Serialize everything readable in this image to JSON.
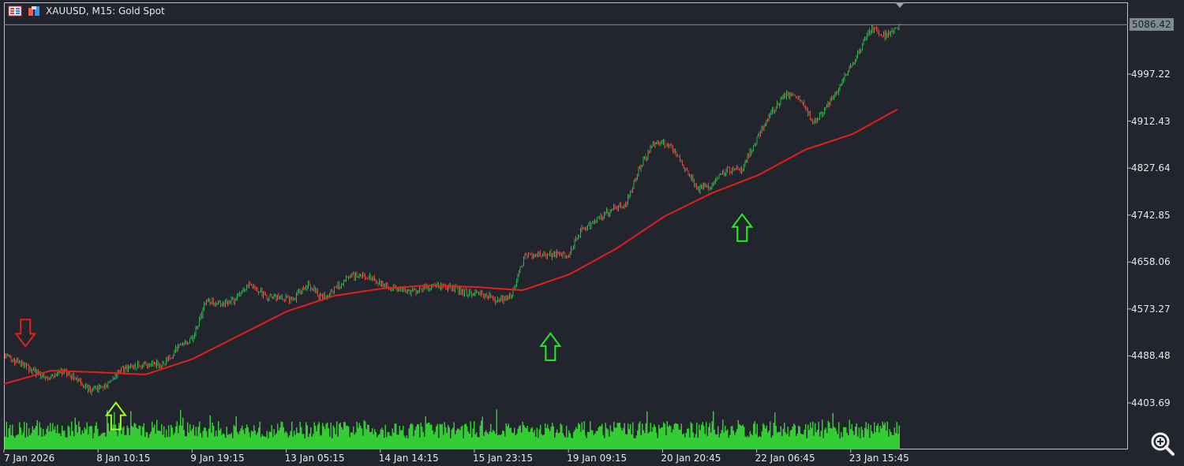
{
  "header": {
    "title": "XAUUSD, M15:  Gold Spot",
    "icons": [
      "order-book-icon",
      "chart-type-icon"
    ]
  },
  "price_axis": {
    "ticks": [
      "4997.22",
      "4912.43",
      "4827.64",
      "4742.85",
      "4658.06",
      "4573.27",
      "4488.48",
      "4403.69"
    ],
    "current_price": "5086.42"
  },
  "time_axis": {
    "ticks": [
      "7 Jan 2026",
      "8 Jan 10:15",
      "9 Jan 19:15",
      "13 Jan 05:15",
      "14 Jan 14:15",
      "15 Jan 23:15",
      "19 Jan 09:15",
      "20 Jan 20:45",
      "22 Jan 06:45",
      "23 Jan 15:45"
    ]
  },
  "colors": {
    "background": "#22252d",
    "bull": "#2fb34a",
    "bear": "#e0443a",
    "ma": "#e3201b",
    "volume": "#33cc33",
    "grid_frame": "#bfc3c8",
    "current_price_label": "#7d8a97"
  },
  "chart_data": {
    "type": "candlestick",
    "symbol": "XAUUSD",
    "timeframe": "M15",
    "ylim": [
      4370,
      5100
    ],
    "price_path": [
      4490,
      4476,
      4462,
      4448,
      4462,
      4448,
      4426,
      4433,
      4462,
      4469,
      4473,
      4473,
      4505,
      4519,
      4590,
      4583,
      4590,
      4619,
      4597,
      4593,
      4590,
      4619,
      4593,
      4611,
      4633,
      4633,
      4619,
      4611,
      4604,
      4611,
      4616,
      4611,
      4602,
      4602,
      4590,
      4593,
      4668,
      4672,
      4672,
      4668,
      4718,
      4732,
      4753,
      4761,
      4832,
      4875,
      4868,
      4832,
      4790,
      4797,
      4825,
      4825,
      4875,
      4925,
      4960,
      4953,
      4910,
      4939,
      4982,
      5032,
      5081,
      5067,
      5086
    ],
    "moving_average": [
      4438,
      4462,
      4459,
      4455,
      4483,
      4526,
      4569,
      4597,
      4610,
      4616,
      4613,
      4607,
      4636,
      4683,
      4740,
      4782,
      4815,
      4861,
      4889,
      4936
    ],
    "signals": [
      {
        "direction": "down",
        "color": "#e0201b",
        "price": 4530,
        "position": 0.024
      },
      {
        "direction": "up",
        "color": "#9bff2a",
        "price": 4380,
        "position": 0.125
      },
      {
        "direction": "up",
        "color": "#22ee22",
        "price": 4505,
        "position": 0.61
      },
      {
        "direction": "up",
        "color": "#22ee22",
        "price": 4720,
        "position": 0.824
      }
    ]
  }
}
